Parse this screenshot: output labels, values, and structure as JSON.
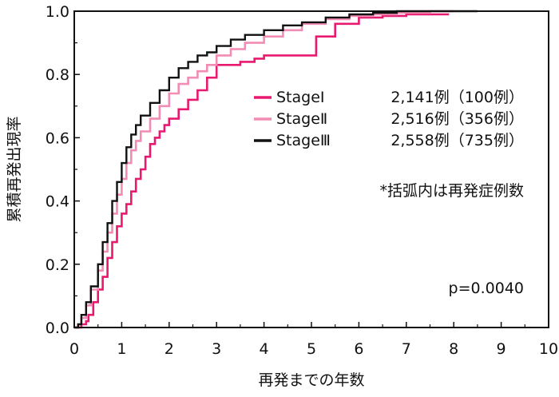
{
  "chart_data": {
    "type": "line",
    "step": true,
    "ylabel": "累積再発出現率",
    "xlabel": "再発までの年数",
    "xlim": [
      0,
      10
    ],
    "ylim": [
      0,
      1.0
    ],
    "xticks": [
      "0",
      "1",
      "2",
      "3",
      "4",
      "5",
      "6",
      "7",
      "8",
      "9",
      "10"
    ],
    "yticks": [
      "0.0",
      "0.2",
      "0.4",
      "0.6",
      "0.8",
      "1.0"
    ],
    "grid": false,
    "legend_position": "right",
    "series": [
      {
        "name": "StageⅠ",
        "legend_detail": "2,141例（100例）",
        "color": "#e8196e",
        "points": [
          [
            0,
            0
          ],
          [
            0.08,
            0
          ],
          [
            0.15,
            0.01
          ],
          [
            0.25,
            0.02
          ],
          [
            0.3,
            0.04
          ],
          [
            0.4,
            0.08
          ],
          [
            0.5,
            0.12
          ],
          [
            0.6,
            0.16
          ],
          [
            0.7,
            0.22
          ],
          [
            0.8,
            0.27
          ],
          [
            0.9,
            0.32
          ],
          [
            1.0,
            0.36
          ],
          [
            1.1,
            0.39
          ],
          [
            1.2,
            0.43
          ],
          [
            1.3,
            0.47
          ],
          [
            1.4,
            0.5
          ],
          [
            1.5,
            0.54
          ],
          [
            1.6,
            0.58
          ],
          [
            1.7,
            0.6
          ],
          [
            1.8,
            0.62
          ],
          [
            1.9,
            0.64
          ],
          [
            2.0,
            0.66
          ],
          [
            2.2,
            0.69
          ],
          [
            2.4,
            0.72
          ],
          [
            2.6,
            0.75
          ],
          [
            2.8,
            0.79
          ],
          [
            3.0,
            0.83
          ],
          [
            3.5,
            0.84
          ],
          [
            3.8,
            0.85
          ],
          [
            4.0,
            0.86
          ],
          [
            4.5,
            0.86
          ],
          [
            4.9,
            0.86
          ],
          [
            5.1,
            0.92
          ],
          [
            5.5,
            0.96
          ],
          [
            6.0,
            0.98
          ],
          [
            6.5,
            0.985
          ],
          [
            7.0,
            0.99
          ],
          [
            7.9,
            0.99
          ]
        ]
      },
      {
        "name": "StageⅡ",
        "legend_detail": "2,516例（356例）",
        "color": "#f28cb4",
        "points": [
          [
            0,
            0
          ],
          [
            0.08,
            0.01
          ],
          [
            0.15,
            0.03
          ],
          [
            0.25,
            0.07
          ],
          [
            0.35,
            0.12
          ],
          [
            0.5,
            0.18
          ],
          [
            0.6,
            0.24
          ],
          [
            0.7,
            0.3
          ],
          [
            0.8,
            0.36
          ],
          [
            0.9,
            0.42
          ],
          [
            1.0,
            0.47
          ],
          [
            1.1,
            0.52
          ],
          [
            1.2,
            0.56
          ],
          [
            1.3,
            0.59
          ],
          [
            1.4,
            0.62
          ],
          [
            1.6,
            0.66
          ],
          [
            1.8,
            0.7
          ],
          [
            2.0,
            0.74
          ],
          [
            2.2,
            0.77
          ],
          [
            2.4,
            0.79
          ],
          [
            2.6,
            0.81
          ],
          [
            2.8,
            0.83
          ],
          [
            3.0,
            0.86
          ],
          [
            3.3,
            0.88
          ],
          [
            3.6,
            0.9
          ],
          [
            4.0,
            0.92
          ],
          [
            4.4,
            0.94
          ],
          [
            4.8,
            0.96
          ],
          [
            5.3,
            0.975
          ],
          [
            5.8,
            0.985
          ],
          [
            6.3,
            0.99
          ],
          [
            6.8,
            0.995
          ],
          [
            7.5,
            1.0
          ],
          [
            8.0,
            1.0
          ]
        ]
      },
      {
        "name": "StageⅢ",
        "legend_detail": "2,558例（735例）",
        "color": "#111111",
        "points": [
          [
            0,
            0
          ],
          [
            0.08,
            0.01
          ],
          [
            0.15,
            0.04
          ],
          [
            0.25,
            0.08
          ],
          [
            0.35,
            0.13
          ],
          [
            0.5,
            0.2
          ],
          [
            0.6,
            0.27
          ],
          [
            0.7,
            0.33
          ],
          [
            0.8,
            0.4
          ],
          [
            0.9,
            0.46
          ],
          [
            1.0,
            0.52
          ],
          [
            1.1,
            0.57
          ],
          [
            1.2,
            0.61
          ],
          [
            1.3,
            0.64
          ],
          [
            1.4,
            0.67
          ],
          [
            1.6,
            0.71
          ],
          [
            1.8,
            0.75
          ],
          [
            2.0,
            0.79
          ],
          [
            2.2,
            0.82
          ],
          [
            2.4,
            0.84
          ],
          [
            2.6,
            0.86
          ],
          [
            2.8,
            0.87
          ],
          [
            3.0,
            0.89
          ],
          [
            3.3,
            0.91
          ],
          [
            3.6,
            0.925
          ],
          [
            4.0,
            0.94
          ],
          [
            4.4,
            0.955
          ],
          [
            4.8,
            0.965
          ],
          [
            5.3,
            0.98
          ],
          [
            5.8,
            0.99
          ],
          [
            6.3,
            0.995
          ],
          [
            6.8,
            1.0
          ],
          [
            8.5,
            1.0
          ]
        ]
      }
    ],
    "annotations": {
      "footnote": "*括弧内は再発症例数",
      "pvalue": "p=0.0040"
    }
  }
}
